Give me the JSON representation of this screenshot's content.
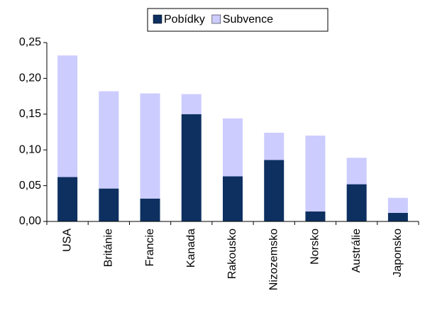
{
  "chart_data": {
    "type": "stacked-bar",
    "categories": [
      "USA",
      "Británie",
      "Francie",
      "Kanada",
      "Rakousko",
      "Nizozemsko",
      "Norsko",
      "Austrálie",
      "Japonsko"
    ],
    "series": [
      {
        "name": "Pobídky",
        "color": "#0d3061",
        "values": [
          0.062,
          0.046,
          0.032,
          0.15,
          0.063,
          0.086,
          0.014,
          0.052,
          0.012
        ]
      },
      {
        "name": "Subvence",
        "color": "#ccccff",
        "values": [
          0.17,
          0.136,
          0.147,
          0.028,
          0.081,
          0.038,
          0.106,
          0.037,
          0.021
        ]
      }
    ],
    "ylim": [
      0,
      0.25
    ],
    "yticks": [
      {
        "value": 0,
        "label": "0,00"
      },
      {
        "value": 0.05,
        "label": "0,05"
      },
      {
        "value": 0.1,
        "label": "0,10"
      },
      {
        "value": 0.15,
        "label": "0,15"
      },
      {
        "value": 0.2,
        "label": "0,20"
      },
      {
        "value": 0.25,
        "label": "0,25"
      }
    ],
    "grid": false,
    "legend": "top"
  }
}
